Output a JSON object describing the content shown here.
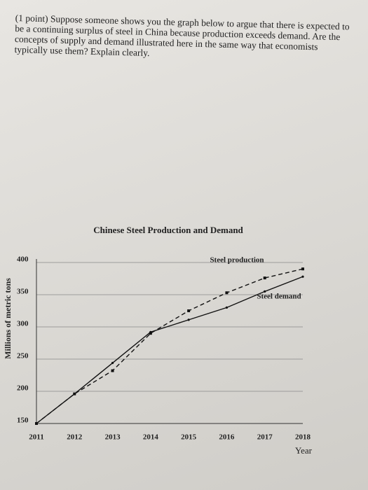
{
  "question": "(1 point) Suppose someone shows you the graph below to argue that there is expected to be a continuing surplus of steel in China because production exceeds demand. Are the concepts of supply and demand illustrated here in the same way that economists typically use them? Explain clearly.",
  "chart_data": {
    "type": "line",
    "title": "Chinese Steel Production and Demand",
    "x_label": "Year",
    "y_label": "Millions of metric tons",
    "x": [
      2011,
      2012,
      2013,
      2014,
      2015,
      2016,
      2017,
      2018
    ],
    "series": [
      {
        "name": "Steel production",
        "color": "#111111",
        "dashed": true,
        "values": [
          150,
          196,
          232,
          290,
          325,
          353,
          376,
          390
        ]
      },
      {
        "name": "Steel demand",
        "color": "#111111",
        "dashed": false,
        "values": [
          150,
          196,
          244,
          292,
          311,
          330,
          355,
          378
        ]
      }
    ],
    "xlim": [
      2011,
      2018
    ],
    "ylim": [
      150,
      400
    ],
    "yticks": [
      150,
      200,
      250,
      300,
      350,
      400
    ],
    "grid": true
  }
}
